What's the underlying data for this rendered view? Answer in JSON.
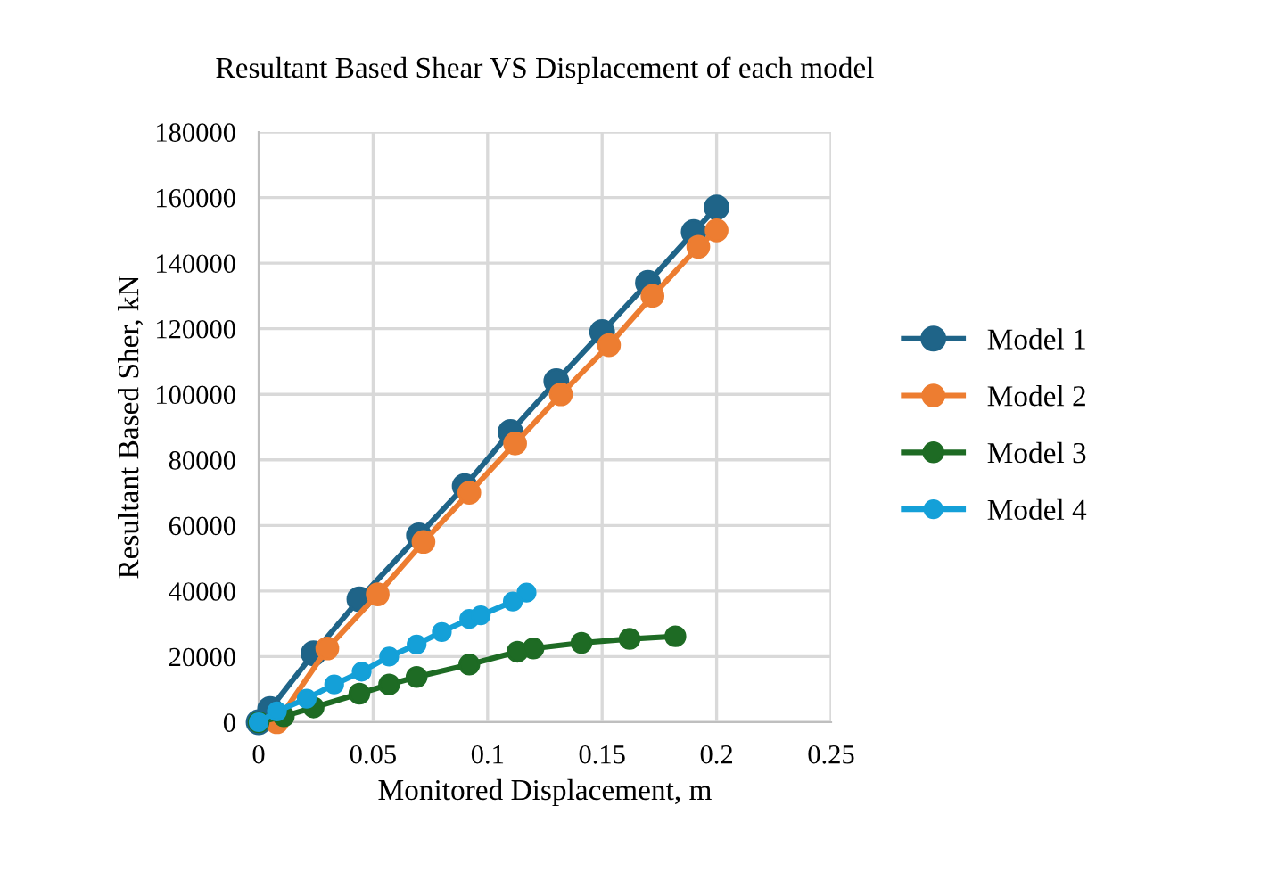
{
  "chart_data": {
    "type": "line",
    "title": "Resultant Based Shear VS Displacement of each model",
    "xlabel": "Monitored Displacement, m",
    "ylabel": "Resultant Based Sher, kN",
    "xlim": [
      0,
      0.25
    ],
    "xticks": [
      0,
      0.05,
      0.1,
      0.15,
      0.2,
      0.25
    ],
    "ylim": [
      0,
      180000
    ],
    "yticks": [
      0,
      20000,
      40000,
      60000,
      80000,
      100000,
      120000,
      140000,
      160000,
      180000
    ],
    "grid": true,
    "legend": "right",
    "marker": "circle",
    "line_style": "solid",
    "series": [
      {
        "name": "Model 1",
        "color": "#1f6488",
        "x": [
          0,
          0.005,
          0.024,
          0.044,
          0.07,
          0.09,
          0.11,
          0.13,
          0.15,
          0.17,
          0.19,
          0.2
        ],
        "values": [
          0,
          4000,
          21000,
          37500,
          57000,
          72000,
          88500,
          104000,
          119000,
          134000,
          149500,
          157000
        ]
      },
      {
        "name": "Model 2",
        "color": "#ed7d31",
        "x": [
          0.008,
          0.03,
          0.052,
          0.072,
          0.092,
          0.112,
          0.132,
          0.153,
          0.172,
          0.192,
          0.2
        ],
        "values": [
          0,
          22500,
          39000,
          55000,
          70000,
          85000,
          100000,
          115000,
          130000,
          145000,
          150000
        ]
      },
      {
        "name": "Model 3",
        "color": "#1e6b24",
        "x": [
          0,
          0.011,
          0.024,
          0.044,
          0.057,
          0.069,
          0.092,
          0.113,
          0.12,
          0.141,
          0.162,
          0.182
        ],
        "values": [
          0,
          1800,
          4500,
          8700,
          11500,
          13800,
          17600,
          21500,
          22500,
          24200,
          25400,
          26200
        ]
      },
      {
        "name": "Model 4",
        "color": "#14a0d8",
        "x": [
          0,
          0.008,
          0.021,
          0.033,
          0.045,
          0.057,
          0.069,
          0.08,
          0.092,
          0.097,
          0.111,
          0.117
        ],
        "values": [
          0,
          3300,
          7200,
          11500,
          15400,
          20000,
          23700,
          27500,
          31500,
          32600,
          36800,
          39500
        ]
      }
    ]
  }
}
